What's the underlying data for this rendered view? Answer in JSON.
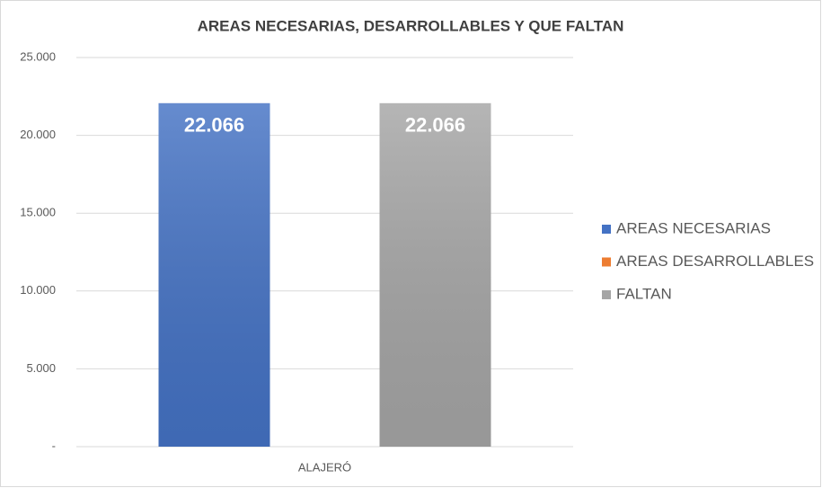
{
  "chart_data": {
    "type": "bar",
    "title": "AREAS NECESARIAS, DESARROLLABLES Y QUE FALTAN",
    "categories": [
      "ALAJERÓ"
    ],
    "series": [
      {
        "name": "AREAS NECESARIAS",
        "color": "#4472c4",
        "values": [
          22066
        ],
        "value_labels": [
          "22.066"
        ]
      },
      {
        "name": "AREAS DESARROLLABLES",
        "color": "#ed7d31",
        "values": [
          0
        ]
      },
      {
        "name": "FALTAN",
        "color": "#a5a5a5",
        "values": [
          22066
        ],
        "value_labels": [
          "22.066"
        ]
      }
    ],
    "ylim": [
      0,
      25000
    ],
    "yticks": [
      {
        "value": 0,
        "label": "-"
      },
      {
        "value": 5000,
        "label": "5.000"
      },
      {
        "value": 10000,
        "label": "10.000"
      },
      {
        "value": 15000,
        "label": "15.000"
      },
      {
        "value": 20000,
        "label": "20.000"
      },
      {
        "value": 25000,
        "label": "25.000"
      }
    ],
    "grid": true,
    "legend": "right"
  }
}
